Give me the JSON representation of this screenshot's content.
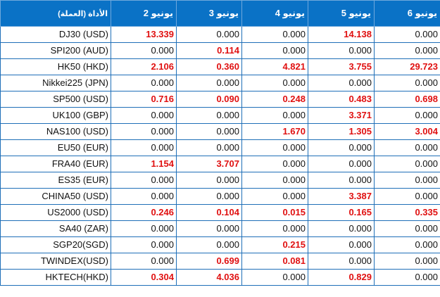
{
  "header": {
    "instrument": "(الأداة (العملة",
    "days": [
      "يونيو 2",
      "يونيو 3",
      "يونيو 4",
      "يونيو 5",
      "يونيو 6"
    ]
  },
  "colors": {
    "header_bg": "#0a72c6",
    "highlight": "#e01010",
    "grid": "#1f6fb8"
  },
  "rows": [
    {
      "name": "DJ30 (USD)",
      "values": [
        "13.339",
        "0.000",
        "0.000",
        "14.138",
        "0.000"
      ],
      "highlight": [
        true,
        false,
        false,
        true,
        false
      ]
    },
    {
      "name": "SPI200 (AUD)",
      "values": [
        "0.000",
        "0.114",
        "0.000",
        "0.000",
        "0.000"
      ],
      "highlight": [
        false,
        true,
        false,
        false,
        false
      ]
    },
    {
      "name": "HK50 (HKD)",
      "values": [
        "2.106",
        "0.360",
        "4.821",
        "3.755",
        "29.723"
      ],
      "highlight": [
        true,
        true,
        true,
        true,
        true
      ]
    },
    {
      "name": "Nikkei225 (JPN)",
      "values": [
        "0.000",
        "0.000",
        "0.000",
        "0.000",
        "0.000"
      ],
      "highlight": [
        false,
        false,
        false,
        false,
        false
      ]
    },
    {
      "name": "SP500 (USD)",
      "values": [
        "0.716",
        "0.090",
        "0.248",
        "0.483",
        "0.698"
      ],
      "highlight": [
        true,
        true,
        true,
        true,
        true
      ]
    },
    {
      "name": "UK100 (GBP)",
      "values": [
        "0.000",
        "0.000",
        "0.000",
        "3.371",
        "0.000"
      ],
      "highlight": [
        false,
        false,
        false,
        true,
        false
      ]
    },
    {
      "name": "NAS100 (USD)",
      "values": [
        "0.000",
        "0.000",
        "1.670",
        "1.305",
        "3.004"
      ],
      "highlight": [
        false,
        false,
        true,
        true,
        true
      ]
    },
    {
      "name": "EU50 (EUR)",
      "values": [
        "0.000",
        "0.000",
        "0.000",
        "0.000",
        "0.000"
      ],
      "highlight": [
        false,
        false,
        false,
        false,
        false
      ]
    },
    {
      "name": "FRA40 (EUR)",
      "values": [
        "1.154",
        "3.707",
        "0.000",
        "0.000",
        "0.000"
      ],
      "highlight": [
        true,
        true,
        false,
        false,
        false
      ]
    },
    {
      "name": "ES35 (EUR)",
      "values": [
        "0.000",
        "0.000",
        "0.000",
        "0.000",
        "0.000"
      ],
      "highlight": [
        false,
        false,
        false,
        false,
        false
      ]
    },
    {
      "name": "CHINA50 (USD)",
      "values": [
        "0.000",
        "0.000",
        "0.000",
        "3.387",
        "0.000"
      ],
      "highlight": [
        false,
        false,
        false,
        true,
        false
      ]
    },
    {
      "name": "US2000 (USD)",
      "values": [
        "0.246",
        "0.104",
        "0.015",
        "0.165",
        "0.335"
      ],
      "highlight": [
        true,
        true,
        true,
        true,
        true
      ]
    },
    {
      "name": "SA40 (ZAR)",
      "values": [
        "0.000",
        "0.000",
        "0.000",
        "0.000",
        "0.000"
      ],
      "highlight": [
        false,
        false,
        false,
        false,
        false
      ]
    },
    {
      "name": "SGP20(SGD)",
      "values": [
        "0.000",
        "0.000",
        "0.215",
        "0.000",
        "0.000"
      ],
      "highlight": [
        false,
        false,
        true,
        false,
        false
      ]
    },
    {
      "name": "TWINDEX(USD)",
      "values": [
        "0.000",
        "0.699",
        "0.081",
        "0.000",
        "0.000"
      ],
      "highlight": [
        false,
        true,
        true,
        false,
        false
      ]
    },
    {
      "name": "HKTECH(HKD)",
      "values": [
        "0.304",
        "4.036",
        "0.000",
        "0.829",
        "0.000"
      ],
      "highlight": [
        true,
        true,
        false,
        true,
        false
      ]
    }
  ]
}
